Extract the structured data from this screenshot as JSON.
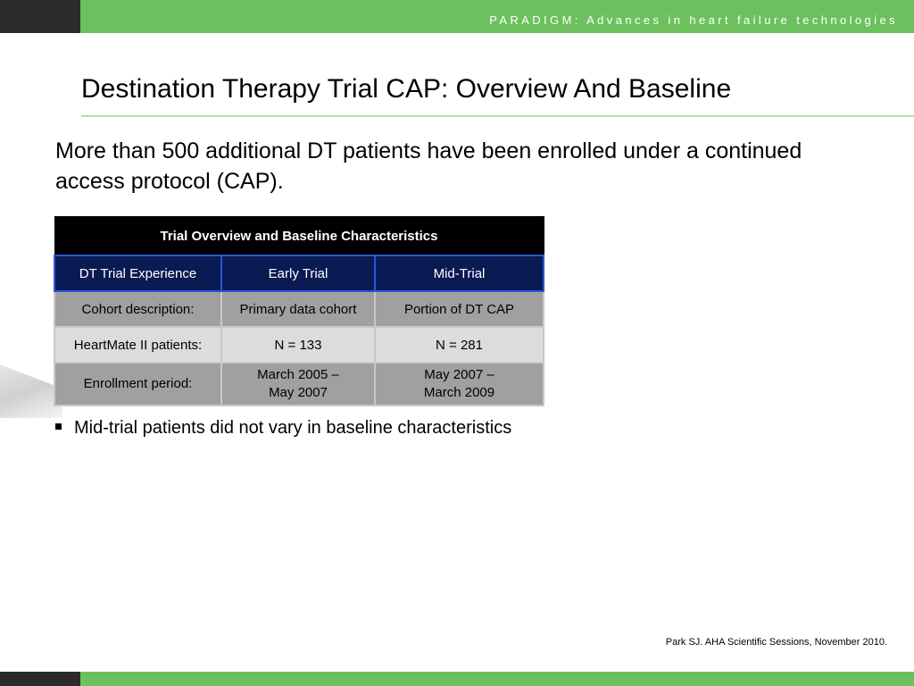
{
  "banner": "PARADIGM: Advances in heart failure technologies",
  "title": "Destination Therapy Trial CAP:  Overview And Baseline",
  "intro": "More than 500 additional DT patients have been enrolled under a continued access protocol (CAP).",
  "table": {
    "header": "Trial Overview and Baseline Characteristics",
    "columns": [
      "DT Trial Experience",
      "Early Trial",
      "Mid-Trial"
    ],
    "rows": [
      {
        "label": "Cohort description:",
        "early": "Primary data cohort",
        "mid": "Portion of DT CAP"
      },
      {
        "label": "HeartMate II patients:",
        "early": "N = 133",
        "mid": "N = 281"
      },
      {
        "label": "Enrollment period:",
        "early_1": "March 2005 –",
        "early_2": "May 2007",
        "mid_1": "May 2007 –",
        "mid_2": "March 2009"
      }
    ]
  },
  "bullet": "Mid-trial patients did not vary in baseline characteristics",
  "citation": "Park SJ. AHA Scientific Sessions, November 2010.",
  "colors": {
    "accent_green": "#6cc15e",
    "dark_bar": "#2b2b2b",
    "table_header": "#000000",
    "subheader_navy": "#0a1a52",
    "subheader_border": "#2a56d8"
  }
}
